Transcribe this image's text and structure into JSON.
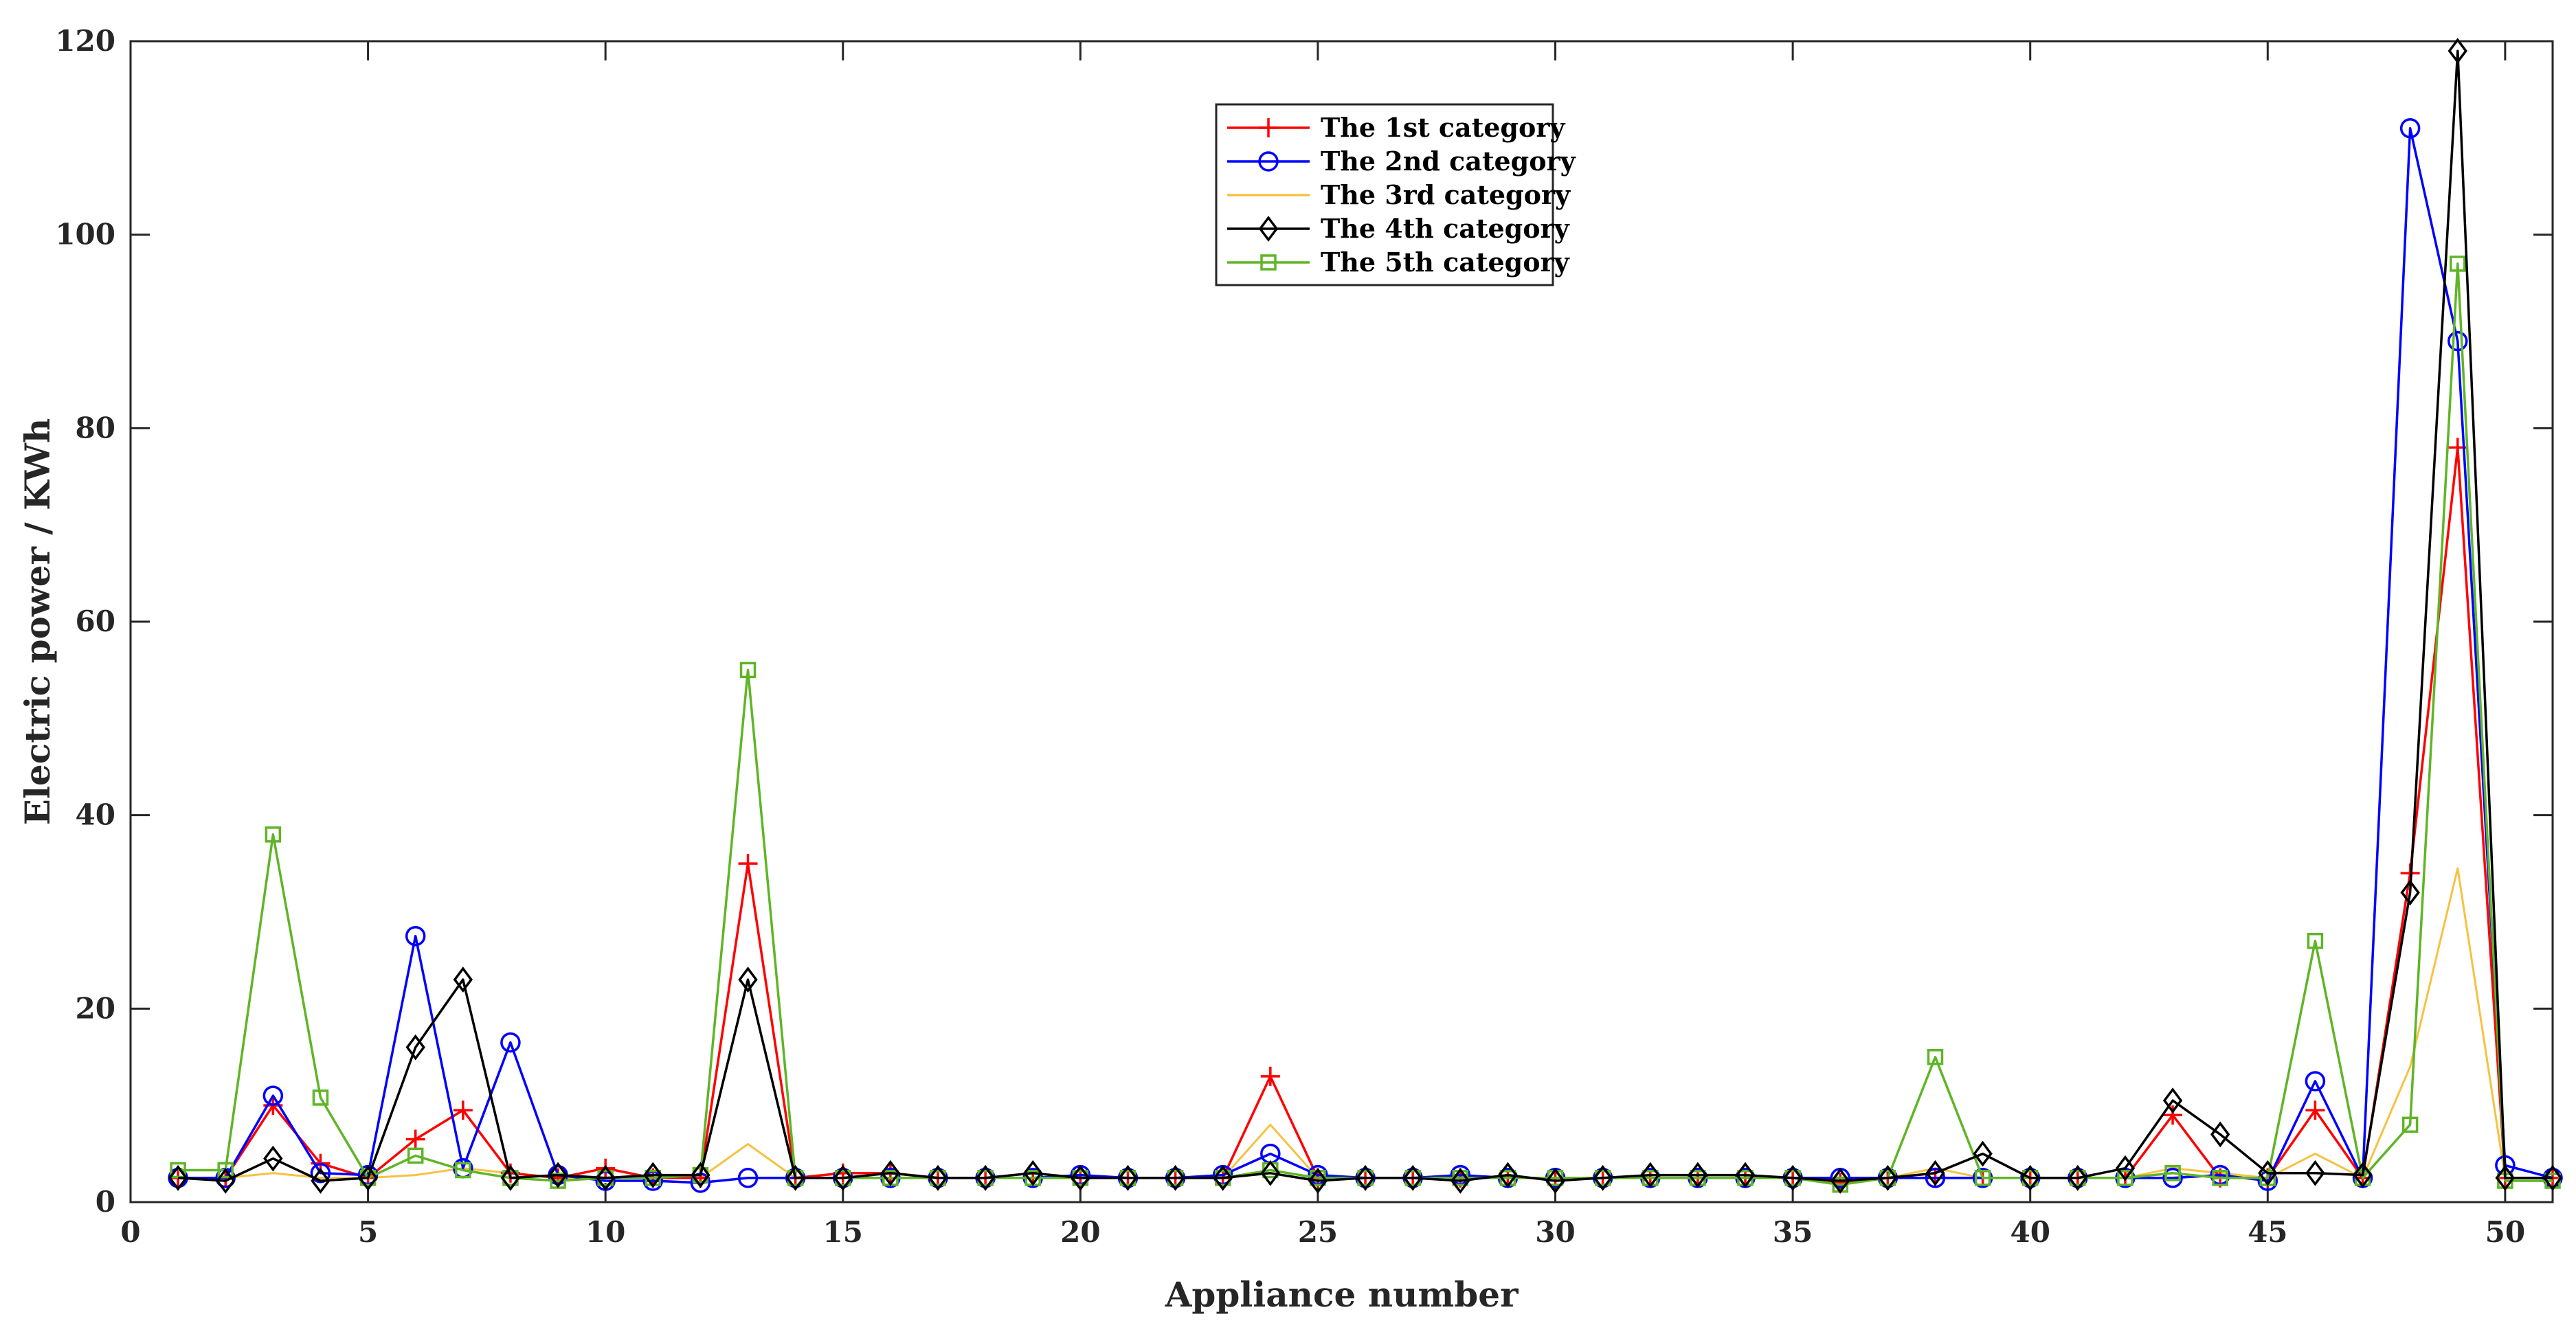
{
  "chart_data": {
    "type": "line",
    "xlabel": "Appliance number",
    "ylabel": "Electric power / KWh",
    "xlim": [
      0,
      51
    ],
    "ylim": [
      0,
      120
    ],
    "xticks": [
      0,
      5,
      10,
      15,
      20,
      25,
      30,
      35,
      40,
      45,
      50
    ],
    "yticks": [
      0,
      20,
      40,
      60,
      80,
      100,
      120
    ],
    "grid": false,
    "legend_position": "top-center",
    "x": [
      1,
      2,
      3,
      4,
      5,
      6,
      7,
      8,
      9,
      10,
      11,
      12,
      13,
      14,
      15,
      16,
      17,
      18,
      19,
      20,
      21,
      22,
      23,
      24,
      25,
      26,
      27,
      28,
      29,
      30,
      31,
      32,
      33,
      34,
      35,
      36,
      37,
      38,
      39,
      40,
      41,
      42,
      43,
      44,
      45,
      46,
      47,
      48,
      49,
      50,
      51
    ],
    "series": [
      {
        "name": "The 1st category",
        "color": "#ff0000",
        "marker": "plus",
        "values": [
          2.5,
          2.5,
          10.0,
          4.0,
          2.5,
          6.5,
          9.5,
          3.0,
          2.5,
          3.5,
          2.5,
          2.5,
          35.0,
          2.5,
          3.0,
          3.0,
          2.5,
          2.5,
          2.5,
          2.5,
          2.5,
          2.5,
          2.5,
          13.0,
          2.5,
          2.5,
          2.5,
          2.5,
          2.5,
          2.5,
          2.5,
          2.5,
          2.5,
          2.5,
          2.5,
          2.0,
          2.5,
          2.5,
          2.5,
          2.5,
          2.5,
          2.5,
          9.0,
          2.5,
          2.5,
          9.5,
          2.5,
          34.0,
          78.0,
          2.5,
          2.5
        ]
      },
      {
        "name": "The 2nd category",
        "color": "#0000ff",
        "marker": "circle",
        "values": [
          2.5,
          2.5,
          11.0,
          3.0,
          2.8,
          27.5,
          3.5,
          16.5,
          2.8,
          2.2,
          2.2,
          2.0,
          2.5,
          2.5,
          2.5,
          2.5,
          2.5,
          2.5,
          2.5,
          2.8,
          2.5,
          2.5,
          2.8,
          5.0,
          2.8,
          2.5,
          2.5,
          2.8,
          2.5,
          2.5,
          2.5,
          2.5,
          2.5,
          2.5,
          2.5,
          2.5,
          2.5,
          2.5,
          2.5,
          2.5,
          2.5,
          2.5,
          2.5,
          2.8,
          2.2,
          12.5,
          2.5,
          111.0,
          89.0,
          3.8,
          2.5
        ]
      },
      {
        "name": "The 3rd category",
        "color": "#f5c242",
        "marker": "none",
        "values": [
          2.5,
          2.5,
          3.0,
          2.5,
          2.5,
          2.8,
          3.5,
          3.0,
          2.5,
          2.5,
          2.5,
          2.5,
          6.0,
          2.5,
          2.5,
          2.5,
          2.5,
          2.5,
          2.5,
          2.5,
          2.5,
          2.5,
          2.5,
          8.0,
          2.5,
          2.5,
          2.5,
          2.5,
          2.5,
          2.5,
          2.5,
          2.5,
          2.5,
          2.5,
          2.5,
          2.0,
          2.5,
          3.5,
          2.5,
          2.5,
          2.5,
          2.5,
          3.5,
          3.0,
          2.5,
          5.0,
          2.5,
          14.0,
          34.5,
          2.5,
          2.5
        ]
      },
      {
        "name": "The 4th category",
        "color": "#000000",
        "marker": "diamond",
        "values": [
          2.5,
          2.2,
          4.5,
          2.2,
          2.5,
          16.0,
          23.0,
          2.5,
          2.8,
          2.5,
          2.8,
          2.8,
          23.0,
          2.5,
          2.5,
          3.0,
          2.5,
          2.5,
          3.0,
          2.5,
          2.5,
          2.5,
          2.5,
          3.0,
          2.2,
          2.5,
          2.5,
          2.2,
          2.8,
          2.2,
          2.5,
          2.8,
          2.8,
          2.8,
          2.5,
          2.2,
          2.5,
          3.0,
          5.0,
          2.5,
          2.5,
          3.5,
          10.5,
          7.0,
          3.0,
          3.0,
          2.8,
          32.0,
          119.0,
          2.5,
          2.5
        ]
      },
      {
        "name": "The 5th category",
        "color": "#5fb526",
        "marker": "square",
        "values": [
          3.3,
          3.3,
          38.0,
          10.8,
          2.5,
          4.8,
          3.3,
          2.5,
          2.2,
          2.5,
          2.5,
          2.8,
          55.0,
          2.5,
          2.5,
          2.5,
          2.5,
          2.5,
          2.5,
          2.5,
          2.5,
          2.5,
          2.5,
          3.3,
          2.5,
          2.5,
          2.5,
          2.5,
          2.5,
          2.5,
          2.5,
          2.5,
          2.5,
          2.5,
          2.5,
          1.8,
          2.5,
          15.0,
          2.5,
          2.5,
          2.5,
          2.5,
          3.0,
          2.5,
          2.5,
          27.0,
          2.5,
          8.0,
          97.0,
          2.2,
          2.2
        ]
      }
    ]
  }
}
